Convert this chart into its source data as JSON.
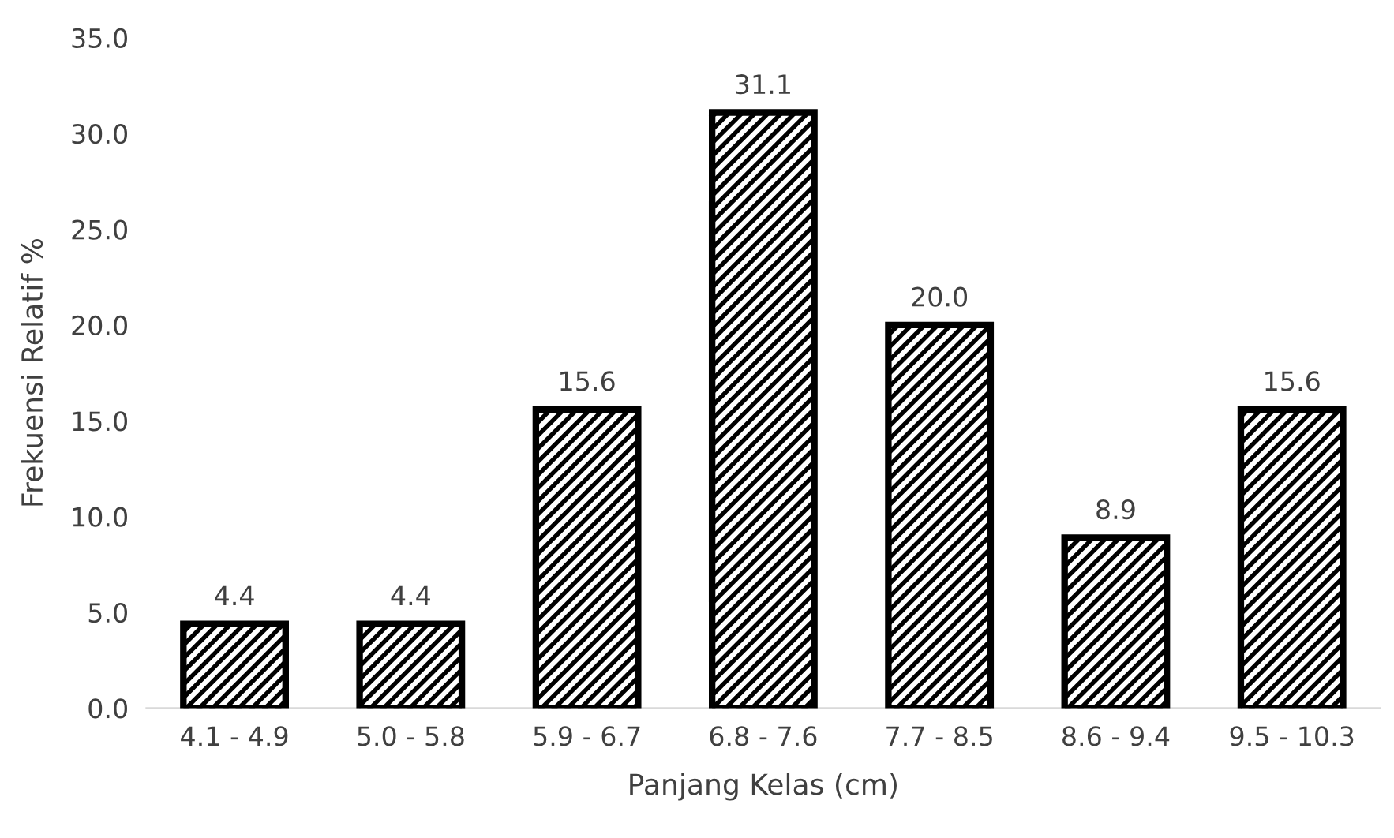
{
  "chart_data": {
    "type": "bar",
    "xlabel": "Panjang Kelas (cm)",
    "ylabel": "Frekuensi Relatif %",
    "categories": [
      "4.1 - 4.9",
      "5.0 - 5.8",
      "5.9 - 6.7",
      "6.8 - 7.6",
      "7.7 - 8.5",
      "8.6 - 9.4",
      "9.5 - 10.3"
    ],
    "values": [
      4.4,
      4.4,
      15.6,
      31.1,
      20.0,
      8.9,
      15.6
    ],
    "color": "#000000",
    "ylim": [
      0,
      35
    ],
    "yticks": [
      {
        "value": 0,
        "label": "0.0"
      },
      {
        "value": 5,
        "label": "5.0"
      },
      {
        "value": 10,
        "label": "10.0"
      },
      {
        "value": 15,
        "label": "15.0"
      },
      {
        "value": 20,
        "label": "20.0"
      },
      {
        "value": 25,
        "label": "25.0"
      },
      {
        "value": 30,
        "label": "30.0"
      },
      {
        "value": 35,
        "label": "35.0"
      }
    ],
    "value_labels": [
      "4.4",
      "4.4",
      "15.6",
      "31.1",
      "20.0",
      "8.9",
      "15.6"
    ],
    "grid": false,
    "legend": false
  }
}
